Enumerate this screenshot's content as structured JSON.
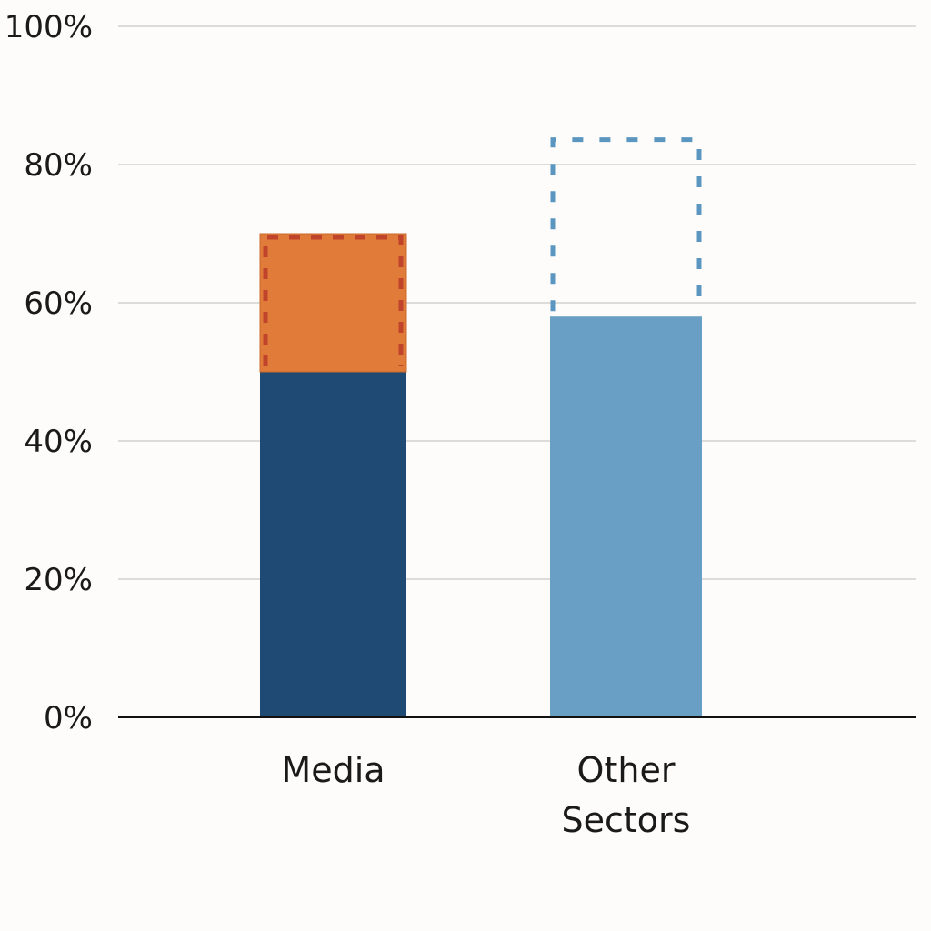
{
  "chart_data": {
    "type": "bar",
    "stacked": true,
    "categories": [
      "Media",
      "Other\nSectors"
    ],
    "category_lines": [
      [
        "Media"
      ],
      [
        "Other",
        "Sectors"
      ]
    ],
    "series": [
      {
        "values": [
          50,
          58
        ],
        "colors": [
          "#1f4a73",
          "#6a9fc5"
        ],
        "style": "solid"
      },
      {
        "values": [
          20,
          null
        ],
        "colors": [
          "#e07b39",
          null
        ],
        "outline": "#c0432b",
        "style": "solid-with-dashed-outline"
      },
      {
        "values": [
          null,
          26
        ],
        "outline": "#5b96c0",
        "style": "dashed-outline"
      }
    ],
    "totals": [
      70,
      84
    ],
    "ylim": [
      0,
      100
    ],
    "yticks": [
      0,
      20,
      40,
      60,
      80,
      100
    ],
    "ytick_labels": [
      "0%",
      "20%",
      "40%",
      "60%",
      "80%",
      "100%"
    ],
    "grid": true,
    "title": "",
    "xlabel": "",
    "ylabel": ""
  }
}
